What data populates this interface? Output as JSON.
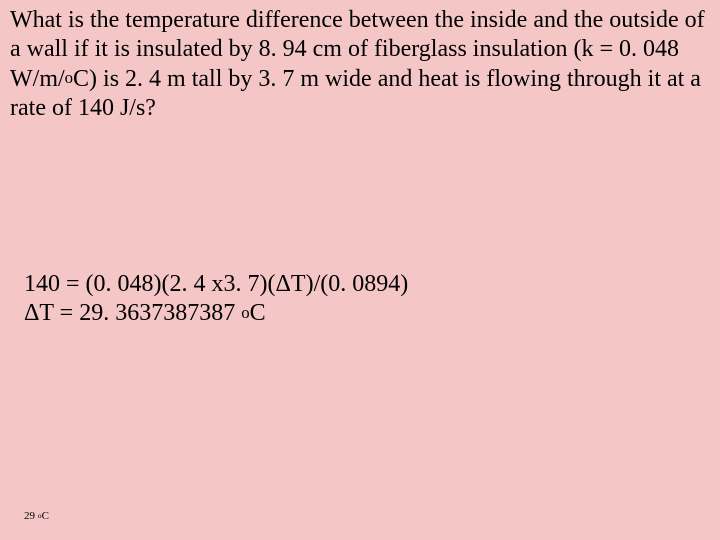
{
  "text_color": "#000000",
  "background_color": "#f4c6c6",
  "font_family": "Times New Roman",
  "question": {
    "fontsize": 24,
    "q_part1": "What is the temperature difference between the inside and the outside of a wall if it is insulated by 8. 94 cm of fiberglass insulation (k = 0. 048 W/m/",
    "q_sup1": "o",
    "q_part2": "C) is 2. 4 m tall by 3. 7 m wide and heat is flowing through it at a rate of 140 J/s?"
  },
  "solution": {
    "fontsize": 24,
    "line1": "140 = (0. 048)(2. 4 x3. 7)(ΔT)/(0. 0894)",
    "line2_a": "ΔT = 29. 3637387387 ",
    "line2_sup": "o",
    "line2_b": "C"
  },
  "answer": {
    "fontsize": 11,
    "a1": "29 ",
    "a_sup": "o",
    "a2": "C"
  }
}
